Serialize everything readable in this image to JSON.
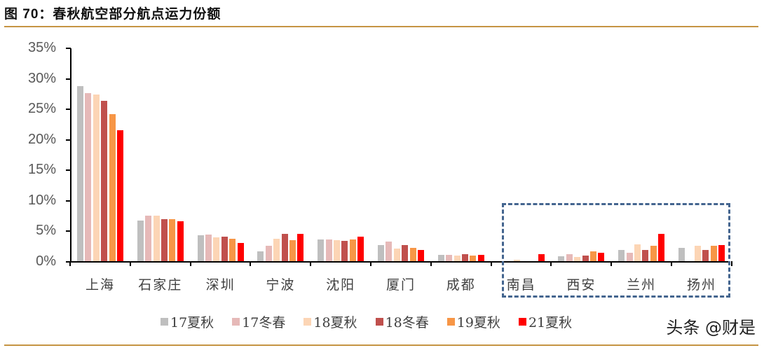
{
  "header": {
    "figure_label": "图 70：",
    "title": "春秋航空部分航点运力份额"
  },
  "watermark": "头条 @财是",
  "colors": {
    "rule": "#c59443",
    "highlight_box": "#44658f"
  },
  "chart_data": {
    "type": "bar",
    "title": "春秋航空部分航点运力份额",
    "xlabel": "",
    "ylabel": "",
    "ylim": [
      0,
      0.35
    ],
    "yticks": [
      "0%",
      "5%",
      "10%",
      "15%",
      "20%",
      "25%",
      "30%",
      "35%"
    ],
    "grid": false,
    "legend_position": "bottom",
    "categories": [
      "上海",
      "石家庄",
      "深圳",
      "宁波",
      "沈阳",
      "厦门",
      "成都",
      "南昌",
      "西安",
      "兰州",
      "扬州"
    ],
    "series": [
      {
        "name": "17夏秋",
        "color": "#bfbfbf",
        "values": [
          28.8,
          6.8,
          4.4,
          1.7,
          3.7,
          2.8,
          1.2,
          0.0,
          0.9,
          1.9,
          2.3
        ]
      },
      {
        "name": "17冬春",
        "color": "#e6b9b8",
        "values": [
          27.7,
          7.6,
          4.5,
          2.6,
          3.7,
          3.3,
          1.1,
          0.1,
          1.3,
          1.5,
          0.0
        ]
      },
      {
        "name": "18夏秋",
        "color": "#fcd5b5",
        "values": [
          27.4,
          7.6,
          4.0,
          3.8,
          3.6,
          2.2,
          1.0,
          0.3,
          0.8,
          2.9,
          2.6
        ]
      },
      {
        "name": "18冬春",
        "color": "#c0504d",
        "values": [
          26.4,
          7.0,
          4.1,
          4.6,
          3.5,
          2.8,
          1.3,
          0.0,
          1.0,
          2.0,
          1.9
        ]
      },
      {
        "name": "19夏秋",
        "color": "#f79646",
        "values": [
          24.2,
          7.0,
          3.8,
          3.6,
          3.7,
          2.3,
          1.0,
          0.0,
          1.7,
          2.6,
          2.6
        ]
      },
      {
        "name": "21夏秋",
        "color": "#ff0000",
        "values": [
          21.6,
          6.6,
          3.1,
          4.6,
          4.1,
          2.0,
          1.2,
          1.3,
          1.5,
          4.6,
          2.8
        ]
      }
    ],
    "annotations": [
      {
        "type": "dashed-box",
        "covers": [
          "南昌",
          "西安",
          "兰州",
          "扬州"
        ]
      }
    ]
  }
}
